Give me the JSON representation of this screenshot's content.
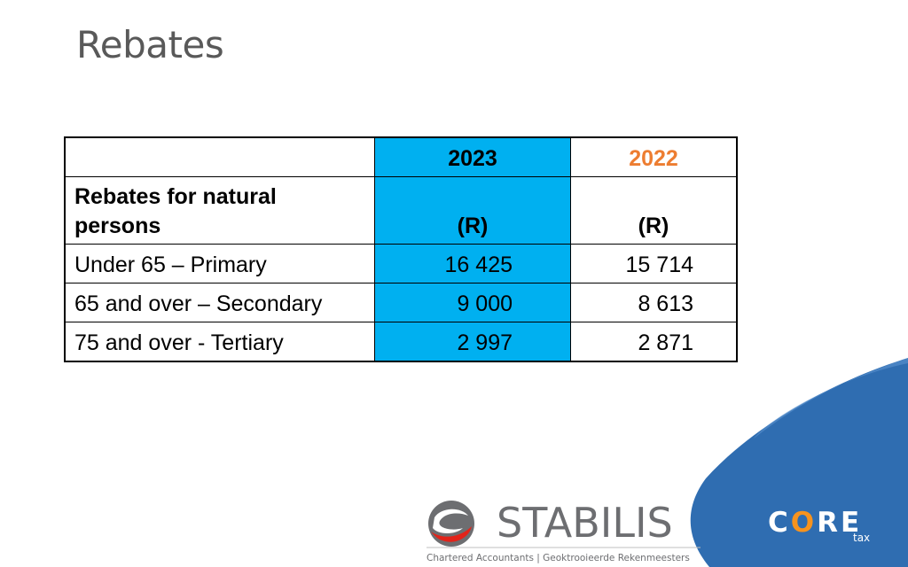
{
  "slide": {
    "title": "Rebates"
  },
  "table": {
    "header": {
      "label": "",
      "year_a": "2023",
      "year_b": "2022"
    },
    "subheader": {
      "label_line1": "Rebates for natural",
      "label_line2": "persons",
      "unit_a": "(R)",
      "unit_b": "(R)"
    },
    "rows": [
      {
        "label": "Under 65 – Primary",
        "value_2023": "16 425",
        "value_2022": "15 714"
      },
      {
        "label": "65 and over – Secondary",
        "value_2023": "9 000",
        "value_2022": "8 613"
      },
      {
        "label": "75 and over - Tertiary",
        "value_2023": "2 997",
        "value_2022": "2 871"
      }
    ]
  },
  "colors": {
    "highlight_column": "#00b0f0",
    "year_2022": "#ed7d31",
    "corner_blue": "#2b6cb0"
  },
  "logos": {
    "stabilis": {
      "name": "STABILIS",
      "tagline": "Chartered Accountants | Geoktrooieerde Rekenmeesters"
    },
    "core": {
      "name_c": "C",
      "name_o": "O",
      "name_re": "RE",
      "sub": "tax"
    }
  }
}
